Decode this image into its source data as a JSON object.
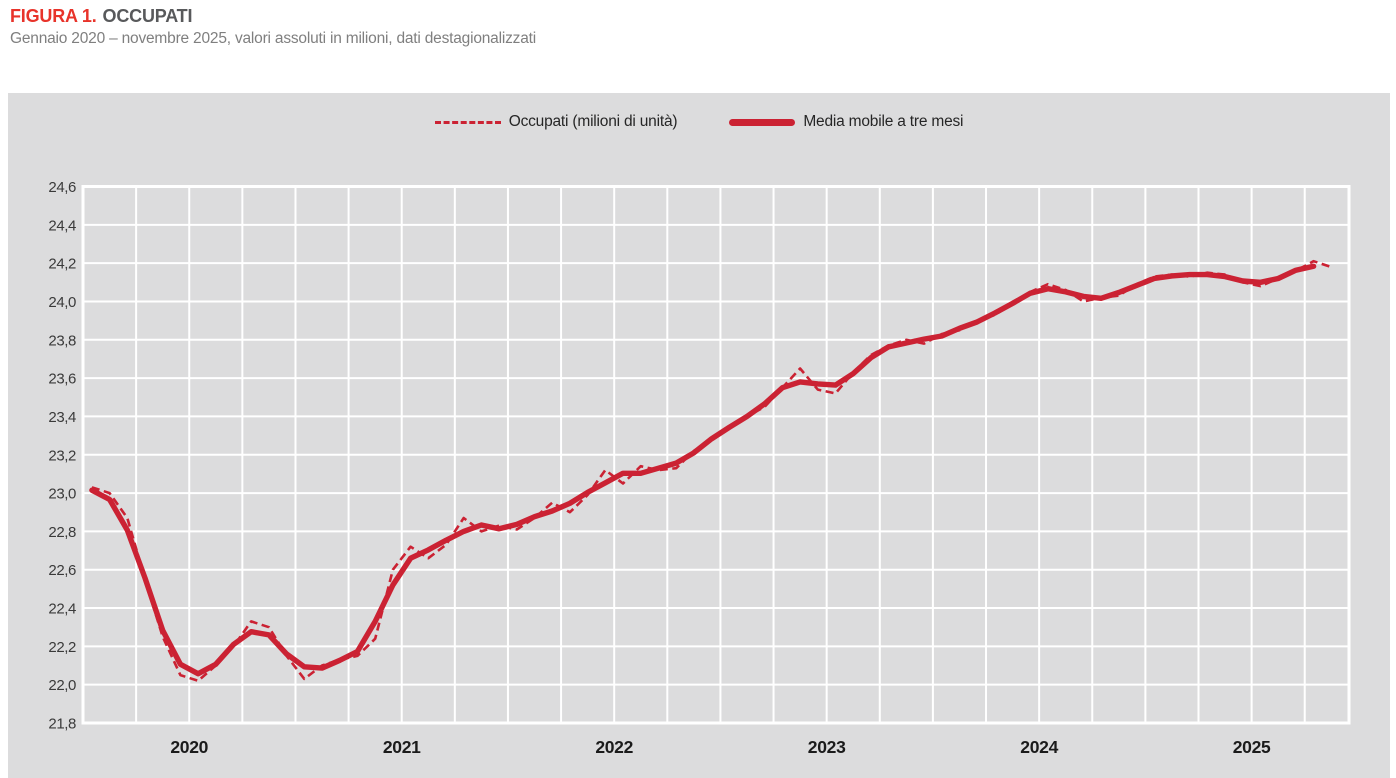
{
  "header": {
    "figure_label": "FIGURA 1.",
    "figure_title": "OCCUPATI",
    "subtitle": "Gennaio 2020 – novembre 2025, valori assoluti in milioni, dati destagionalizzati"
  },
  "legend": {
    "occupati_label": "Occupati (milioni di unità)",
    "media_mobile_label": "Media mobile a tre mesi"
  },
  "colors": {
    "line_red": "#cb2233",
    "title_red": "#e8332a",
    "title_gray": "#58595b",
    "panel_bg": "#dcdcdd",
    "grid_white": "#ffffff"
  },
  "chart_data": {
    "type": "line",
    "title": "FIGURA 1. OCCUPATI",
    "subtitle": "Gennaio 2020 – novembre 2025, valori assoluti in milioni, dati destagionalizzati",
    "x_start": "2020-01",
    "x_end": "2025-11",
    "months_count": 71,
    "y_range": [
      21.8,
      24.6
    ],
    "y_step": 0.2,
    "y_tick_labels": [
      "24,6",
      "24,4",
      "24,2",
      "24,0",
      "23,8",
      "23,6",
      "23,4",
      "23,2",
      "23,0",
      "22,8",
      "22,6",
      "22,4",
      "22,2",
      "22,0",
      "21,8"
    ],
    "x_tick_labels": [
      "2020",
      "2021",
      "2022",
      "2023",
      "2024",
      "2025"
    ],
    "grid": {
      "vertical": "quarterly",
      "horizontal_step": 0.2,
      "style": "white lines on gray panel"
    },
    "legend_position": "top-center",
    "series": [
      {
        "name": "Occupati (milioni di unità)",
        "style": "dashed",
        "values": [
          23.03,
          23.0,
          22.87,
          22.55,
          22.25,
          22.05,
          22.02,
          22.1,
          22.2,
          22.33,
          22.3,
          22.15,
          22.03,
          22.1,
          22.13,
          22.15,
          22.24,
          22.6,
          22.72,
          22.66,
          22.73,
          22.87,
          22.8,
          22.83,
          22.81,
          22.87,
          22.95,
          22.9,
          22.99,
          23.12,
          23.05,
          23.14,
          23.12,
          23.13,
          23.22,
          23.28,
          23.35,
          23.4,
          23.45,
          23.55,
          23.65,
          23.54,
          23.52,
          23.63,
          23.72,
          23.77,
          23.8,
          23.78,
          23.83,
          23.85,
          23.9,
          23.93,
          23.99,
          24.05,
          24.09,
          24.06,
          24.0,
          24.02,
          24.03,
          24.09,
          24.13,
          24.14,
          24.13,
          24.15,
          24.14,
          24.1,
          24.08,
          24.12,
          24.16,
          24.21,
          24.18
        ]
      },
      {
        "name": "Media mobile a tre mesi",
        "style": "solid",
        "derived": "centered 3-month moving average of Occupati; ends one month before last observation"
      }
    ]
  }
}
